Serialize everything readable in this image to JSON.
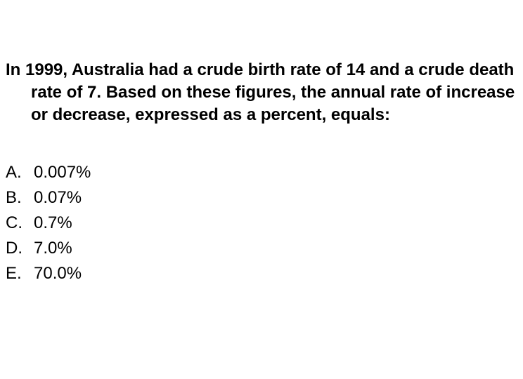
{
  "question": "In 1999, Australia had a crude birth rate of 14 and a crude death rate of 7. Based on these figures, the annual rate of increase or decrease, expressed as a percent, equals:",
  "choices": [
    {
      "letter": "A.",
      "text": "0.007%"
    },
    {
      "letter": "B.",
      "text": "0.07%"
    },
    {
      "letter": "C.",
      "text": "0.7%"
    },
    {
      "letter": "D.",
      "text": "7.0%"
    },
    {
      "letter": "E.",
      "text": "70.0%"
    }
  ]
}
